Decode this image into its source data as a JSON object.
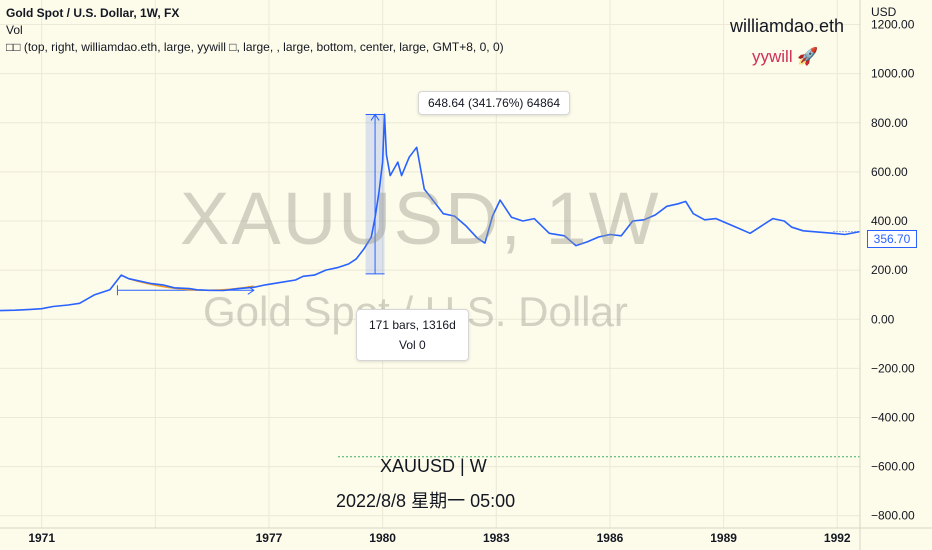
{
  "header": {
    "title": "Gold Spot / U.S. Dollar, 1W, FX",
    "vol_label": "Vol",
    "indicator": "□□ (top, right, williamdao.eth, large, yywill □, large, , large, bottom, center, large, GMT+8, 0, 0)"
  },
  "watermark": {
    "symbol": "XAUUSD, 1W",
    "description": "Gold Spot / U.S. Dollar"
  },
  "corner_text": {
    "name": "williamdao.eth",
    "tag": "yywill 🚀"
  },
  "bottom_text": {
    "symbol": "XAUUSD | W",
    "date": "2022/8/8 星期一 05:00"
  },
  "tooltips": {
    "price_range": "648.64 (341.76%) 64864",
    "date_range": "171 bars, 1316d",
    "volume": "Vol 0"
  },
  "chart_data": {
    "type": "line",
    "title": "Gold Spot / U.S. Dollar, 1W, FX",
    "ylabel": "USD",
    "ylim": [
      -850,
      1300
    ],
    "xlim": [
      1969.9,
      1992.6
    ],
    "y_ticks": [
      1200,
      1000,
      800,
      600,
      400,
      200,
      0,
      -200,
      -400,
      -600,
      -800
    ],
    "y_tick_labels": [
      "1200.00",
      "1000.00",
      "800.00",
      "600.00",
      "400.00",
      "200.00",
      "0.00",
      "−200.00",
      "−400.00",
      "−600.00",
      "−800.00"
    ],
    "x_ticks": [
      1971,
      1974,
      1977,
      1980,
      1983,
      1986,
      1989,
      1992
    ],
    "x_tick_labels": [
      "1971",
      "",
      "1977",
      "1980",
      "1983",
      "1986",
      "1989",
      "1992"
    ],
    "last_price": 356.7,
    "last_price_label": "356.70",
    "grid": true,
    "series": [
      {
        "color": "#2962ff",
        "x": [
          1969.8,
          1970.3,
          1970.7,
          1971.0,
          1971.3,
          1971.7,
          1972.0,
          1972.4,
          1972.8,
          1973.1,
          1973.3,
          1973.6,
          1973.9,
          1974.2,
          1974.5,
          1974.9,
          1975.1,
          1975.4,
          1975.8,
          1976.2,
          1976.6,
          1976.9,
          1977.3,
          1977.7,
          1977.9,
          1978.2,
          1978.5,
          1978.8,
          1979.1,
          1979.3,
          1979.5,
          1979.7,
          1979.8,
          1979.9,
          1980.0,
          1980.05,
          1980.1,
          1980.2,
          1980.4,
          1980.5,
          1980.7,
          1980.9,
          1981.1,
          1981.3,
          1981.6,
          1981.9,
          1982.2,
          1982.5,
          1982.7,
          1982.9,
          1983.1,
          1983.4,
          1983.7,
          1984.0,
          1984.4,
          1984.8,
          1985.1,
          1985.4,
          1985.7,
          1986.0,
          1986.3,
          1986.6,
          1986.9,
          1987.2,
          1987.5,
          1987.8,
          1988.0,
          1988.2,
          1988.5,
          1988.8,
          1989.1,
          1989.4,
          1989.7,
          1990.0,
          1990.3,
          1990.6,
          1990.8,
          1991.1,
          1991.5,
          1991.9,
          1992.2,
          1992.6
        ],
        "y": [
          35,
          37,
          40,
          43,
          52,
          58,
          65,
          100,
          120,
          180,
          165,
          155,
          145,
          140,
          128,
          125,
          120,
          118,
          117,
          125,
          130,
          140,
          150,
          160,
          175,
          180,
          200,
          210,
          225,
          245,
          285,
          335,
          415,
          515,
          640,
          835,
          670,
          585,
          640,
          585,
          660,
          700,
          530,
          490,
          430,
          420,
          380,
          330,
          310,
          420,
          485,
          415,
          400,
          410,
          350,
          340,
          300,
          315,
          335,
          345,
          340,
          400,
          405,
          425,
          460,
          470,
          480,
          430,
          405,
          410,
          390,
          370,
          350,
          380,
          410,
          400,
          375,
          360,
          355,
          350,
          345,
          357
        ]
      }
    ],
    "annotations": {
      "price_range_from": 185,
      "price_range_to": 834,
      "price_range_x": [
        1979.55,
        1980.05
      ],
      "date_range_x": [
        1973.0,
        1976.6
      ],
      "date_range_y": 118,
      "zero_line": -560
    }
  }
}
